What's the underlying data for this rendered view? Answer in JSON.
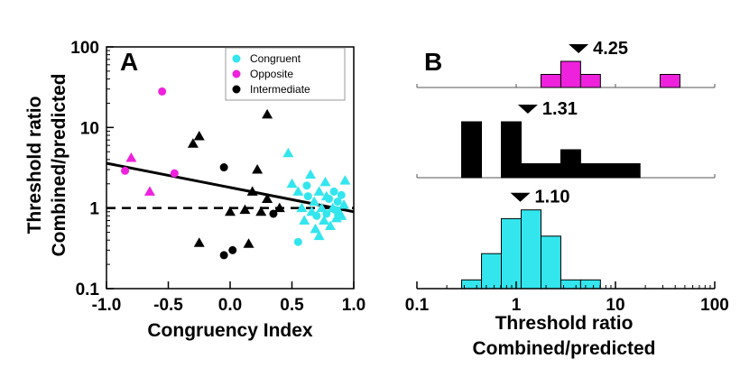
{
  "colors": {
    "congruent": "#33e6ee",
    "opposite": "#ee22dd",
    "intermediate": "#000000"
  },
  "chart_data": [
    {
      "panel": "A",
      "type": "scatter",
      "xlabel": "Congruency Index",
      "ylabel_lines": [
        "Threshold ratio",
        "Combined/predicted"
      ],
      "xlim": [
        -1.0,
        1.0
      ],
      "ylim": [
        0.1,
        100
      ],
      "yscale": "log",
      "x_ticks": [
        -1.0,
        -0.5,
        0.0,
        0.5,
        1.0
      ],
      "x_tick_labels": [
        "-1.0",
        "-0.5",
        "0.0",
        "0.5",
        "1.0"
      ],
      "y_ticks": [
        0.1,
        1,
        10,
        100
      ],
      "y_tick_labels": [
        "0.1",
        "1",
        "10",
        "100"
      ],
      "legend": {
        "placement": "top-right",
        "entries": [
          {
            "name": "Congruent",
            "color_key": "congruent"
          },
          {
            "name": "Opposite",
            "color_key": "opposite"
          },
          {
            "name": "Intermediate",
            "color_key": "intermediate"
          }
        ]
      },
      "reference_line": {
        "y": 1,
        "style": "dashed"
      },
      "fit_line": {
        "x": [
          -1.0,
          1.0
        ],
        "y": [
          3.6,
          0.9
        ]
      },
      "series": [
        {
          "name": "Congruent",
          "color_key": "congruent",
          "points": [
            {
              "x": 0.47,
              "y": 4.8,
              "m": "tri"
            },
            {
              "x": 0.5,
              "y": 2.0,
              "m": "tri"
            },
            {
              "x": 0.55,
              "y": 1.6,
              "m": "tri"
            },
            {
              "x": 0.58,
              "y": 1.0,
              "m": "tri"
            },
            {
              "x": 0.6,
              "y": 0.7,
              "m": "tri"
            },
            {
              "x": 0.62,
              "y": 1.9,
              "m": "circ"
            },
            {
              "x": 0.63,
              "y": 1.4,
              "m": "circ"
            },
            {
              "x": 0.65,
              "y": 2.6,
              "m": "tri"
            },
            {
              "x": 0.66,
              "y": 0.9,
              "m": "tri"
            },
            {
              "x": 0.68,
              "y": 1.2,
              "m": "tri"
            },
            {
              "x": 0.69,
              "y": 0.55,
              "m": "tri"
            },
            {
              "x": 0.7,
              "y": 0.8,
              "m": "circ"
            },
            {
              "x": 0.72,
              "y": 1.6,
              "m": "tri"
            },
            {
              "x": 0.74,
              "y": 1.0,
              "m": "tri"
            },
            {
              "x": 0.76,
              "y": 0.7,
              "m": "tri"
            },
            {
              "x": 0.77,
              "y": 2.1,
              "m": "tri"
            },
            {
              "x": 0.78,
              "y": 0.85,
              "m": "circ"
            },
            {
              "x": 0.8,
              "y": 1.3,
              "m": "circ"
            },
            {
              "x": 0.81,
              "y": 0.6,
              "m": "tri"
            },
            {
              "x": 0.83,
              "y": 1.0,
              "m": "tri"
            },
            {
              "x": 0.84,
              "y": 1.6,
              "m": "circ"
            },
            {
              "x": 0.86,
              "y": 0.75,
              "m": "tri"
            },
            {
              "x": 0.87,
              "y": 1.2,
              "m": "circ"
            },
            {
              "x": 0.88,
              "y": 0.9,
              "m": "tri"
            },
            {
              "x": 0.9,
              "y": 1.45,
              "m": "circ"
            },
            {
              "x": 0.92,
              "y": 1.1,
              "m": "tri"
            },
            {
              "x": 0.93,
              "y": 2.2,
              "m": "tri"
            },
            {
              "x": 0.55,
              "y": 0.38,
              "m": "circ"
            },
            {
              "x": 0.72,
              "y": 0.45,
              "m": "tri"
            },
            {
              "x": 0.78,
              "y": 1.4,
              "m": "tri"
            },
            {
              "x": 0.85,
              "y": 0.95,
              "m": "circ"
            },
            {
              "x": 0.9,
              "y": 0.8,
              "m": "tri"
            }
          ]
        },
        {
          "name": "Opposite",
          "color_key": "opposite",
          "points": [
            {
              "x": -0.85,
              "y": 2.9,
              "m": "circ"
            },
            {
              "x": -0.8,
              "y": 4.2,
              "m": "tri"
            },
            {
              "x": -0.65,
              "y": 1.6,
              "m": "tri"
            },
            {
              "x": -0.55,
              "y": 28,
              "m": "circ"
            },
            {
              "x": -0.45,
              "y": 2.7,
              "m": "circ"
            }
          ]
        },
        {
          "name": "Intermediate",
          "color_key": "intermediate",
          "points": [
            {
              "x": -0.3,
              "y": 6.3,
              "m": "tri"
            },
            {
              "x": -0.25,
              "y": 7.8,
              "m": "tri"
            },
            {
              "x": -0.25,
              "y": 0.37,
              "m": "tri"
            },
            {
              "x": -0.05,
              "y": 3.2,
              "m": "circ"
            },
            {
              "x": -0.05,
              "y": 0.26,
              "m": "circ"
            },
            {
              "x": 0.0,
              "y": 0.9,
              "m": "tri"
            },
            {
              "x": 0.02,
              "y": 0.3,
              "m": "circ"
            },
            {
              "x": 0.12,
              "y": 0.95,
              "m": "tri"
            },
            {
              "x": 0.15,
              "y": 0.36,
              "m": "tri"
            },
            {
              "x": 0.18,
              "y": 1.6,
              "m": "tri"
            },
            {
              "x": 0.22,
              "y": 3.0,
              "m": "tri"
            },
            {
              "x": 0.25,
              "y": 0.9,
              "m": "tri"
            },
            {
              "x": 0.3,
              "y": 14.5,
              "m": "tri"
            },
            {
              "x": 0.3,
              "y": 1.3,
              "m": "tri"
            },
            {
              "x": 0.35,
              "y": 0.85,
              "m": "circ"
            },
            {
              "x": 0.4,
              "y": 1.0,
              "m": "tri"
            }
          ]
        }
      ]
    },
    {
      "panel": "B",
      "type": "bar",
      "subtype": "stacked-histograms",
      "xlabel_lines": [
        "Threshold ratio",
        "Combined/predicted"
      ],
      "xlim": [
        0.1,
        100
      ],
      "xscale": "log",
      "x_ticks": [
        0.1,
        1,
        10,
        100
      ],
      "x_tick_labels": [
        "0.1",
        "1",
        "10",
        "100"
      ],
      "histograms": [
        {
          "name": "Opposite",
          "color_key": "opposite",
          "median": 4.25,
          "median_label": "4.25",
          "bins": [
            {
              "lo": 1.778,
              "hi": 2.815,
              "count": 1
            },
            {
              "lo": 2.815,
              "hi": 4.456,
              "count": 2
            },
            {
              "lo": 4.456,
              "hi": 7.055,
              "count": 1
            },
            {
              "lo": 28.18,
              "hi": 44.62,
              "count": 1
            }
          ]
        },
        {
          "name": "Intermediate",
          "color_key": "intermediate",
          "median": 1.31,
          "median_label": "1.31",
          "bins": [
            {
              "lo": 0.282,
              "hi": 0.447,
              "count": 4
            },
            {
              "lo": 0.708,
              "hi": 1.122,
              "count": 4
            },
            {
              "lo": 1.122,
              "hi": 1.778,
              "count": 1
            },
            {
              "lo": 1.778,
              "hi": 2.815,
              "count": 1
            },
            {
              "lo": 2.815,
              "hi": 4.456,
              "count": 2
            },
            {
              "lo": 4.456,
              "hi": 7.055,
              "count": 1
            },
            {
              "lo": 7.055,
              "hi": 11.17,
              "count": 1
            },
            {
              "lo": 11.17,
              "hi": 17.68,
              "count": 1
            }
          ]
        },
        {
          "name": "Congruent",
          "color_key": "congruent",
          "median": 1.1,
          "median_label": "1.10",
          "bins": [
            {
              "lo": 0.282,
              "hi": 0.447,
              "count": 1
            },
            {
              "lo": 0.447,
              "hi": 0.708,
              "count": 4
            },
            {
              "lo": 0.708,
              "hi": 1.122,
              "count": 8
            },
            {
              "lo": 1.122,
              "hi": 1.778,
              "count": 9
            },
            {
              "lo": 1.778,
              "hi": 2.815,
              "count": 6
            },
            {
              "lo": 2.815,
              "hi": 4.456,
              "count": 1
            },
            {
              "lo": 4.456,
              "hi": 7.055,
              "count": 1
            }
          ]
        }
      ]
    }
  ]
}
